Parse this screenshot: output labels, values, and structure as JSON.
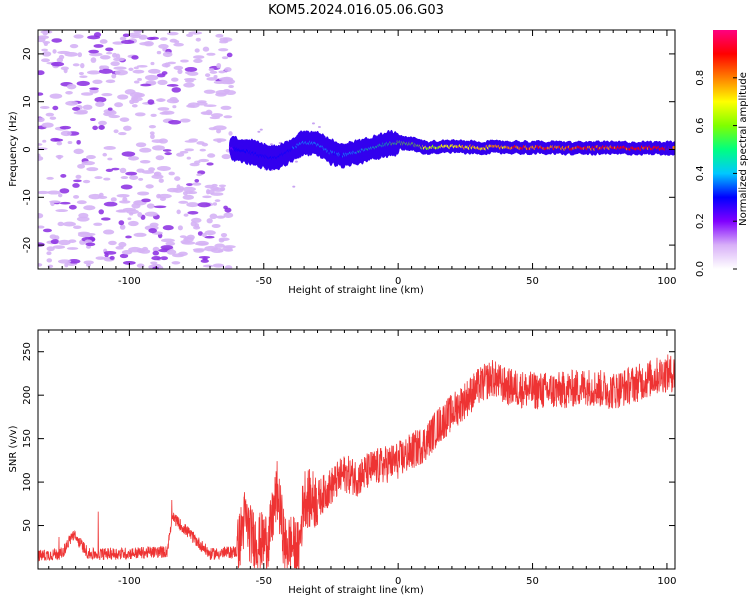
{
  "figure": {
    "title": "KOM5.2024.016.05.06.G03"
  },
  "chart_data": [
    {
      "type": "heatmap",
      "xlabel": "Height of straight line (km)",
      "ylabel": "Frequency (Hz)",
      "xlim": [
        -134,
        103
      ],
      "ylim": [
        -25,
        25
      ],
      "xticks": [
        -100,
        -50,
        0,
        50,
        100
      ],
      "yticks": [
        -20,
        -10,
        0,
        10,
        20
      ],
      "colorbar": {
        "label": "Normalized spectral amplitude",
        "range": [
          0,
          1
        ],
        "ticks": [
          "0.0",
          "0.2",
          "0.4",
          "0.6",
          "0.8"
        ],
        "colormap": [
          "#ffffff",
          "#d8b0f8",
          "#8000ff",
          "#0000ff",
          "#00c8ff",
          "#00ff80",
          "#80ff00",
          "#ffff00",
          "#ff8000",
          "#ff0000",
          "#ff0080"
        ]
      },
      "signal_track": [
        {
          "x": -62,
          "freq": 0.3,
          "amp": 0.25
        },
        {
          "x": -55,
          "freq": -0.5,
          "amp": 0.35
        },
        {
          "x": -50,
          "freq": -1.5,
          "amp": 0.3
        },
        {
          "x": -45,
          "freq": -1.8,
          "amp": 0.3
        },
        {
          "x": -40,
          "freq": -0.2,
          "amp": 0.35
        },
        {
          "x": -35,
          "freq": 1.5,
          "amp": 0.45
        },
        {
          "x": -30,
          "freq": 1.2,
          "amp": 0.45
        },
        {
          "x": -25,
          "freq": -0.5,
          "amp": 0.4
        },
        {
          "x": -20,
          "freq": -1.2,
          "amp": 0.4
        },
        {
          "x": -15,
          "freq": -0.5,
          "amp": 0.45
        },
        {
          "x": -10,
          "freq": 0.3,
          "amp": 0.5
        },
        {
          "x": -5,
          "freq": 1.0,
          "amp": 0.55
        },
        {
          "x": 0,
          "freq": 1.5,
          "amp": 0.6
        },
        {
          "x": 5,
          "freq": 1.2,
          "amp": 0.65
        },
        {
          "x": 10,
          "freq": 0.4,
          "amp": 0.7
        },
        {
          "x": 20,
          "freq": 0.6,
          "amp": 0.75
        },
        {
          "x": 30,
          "freq": 0.4,
          "amp": 0.8
        },
        {
          "x": 40,
          "freq": 0.5,
          "amp": 0.85
        },
        {
          "x": 50,
          "freq": 0.4,
          "amp": 0.9
        },
        {
          "x": 60,
          "freq": 0.3,
          "amp": 0.9
        },
        {
          "x": 70,
          "freq": 0.3,
          "amp": 0.92
        },
        {
          "x": 80,
          "freq": 0.3,
          "amp": 0.95
        },
        {
          "x": 90,
          "freq": 0.3,
          "amp": 0.95
        },
        {
          "x": 100,
          "freq": 0.3,
          "amp": 0.95
        },
        {
          "x": 103,
          "freq": 0.3,
          "amp": 0.95
        }
      ]
    },
    {
      "type": "line",
      "xlabel": "Height of straight line (km)",
      "ylabel": "SNR (v/v)",
      "xlim": [
        -134,
        103
      ],
      "ylim": [
        0,
        275
      ],
      "xticks": [
        -100,
        -50,
        0,
        50,
        100
      ],
      "yticks": [
        50,
        100,
        150,
        200,
        250
      ],
      "series": [
        {
          "color": "#ee3333",
          "x": [
            -134,
            -125,
            -121,
            -115,
            -100,
            -86,
            -84,
            -70,
            -60,
            -57,
            -55,
            -52,
            -48,
            -45,
            -42,
            -40,
            -37,
            -35,
            -33,
            -30,
            -25,
            -20,
            -15,
            -10,
            -5,
            0,
            5,
            10,
            15,
            20,
            25,
            30,
            35,
            40,
            50,
            60,
            70,
            80,
            90,
            99,
            103
          ],
          "y": [
            15,
            18,
            40,
            17,
            18,
            20,
            60,
            17,
            20,
            60,
            40,
            30,
            35,
            90,
            25,
            30,
            20,
            85,
            80,
            80,
            95,
            110,
            105,
            115,
            120,
            125,
            135,
            145,
            165,
            180,
            195,
            210,
            220,
            210,
            205,
            205,
            210,
            205,
            215,
            225,
            225
          ]
        }
      ]
    }
  ]
}
